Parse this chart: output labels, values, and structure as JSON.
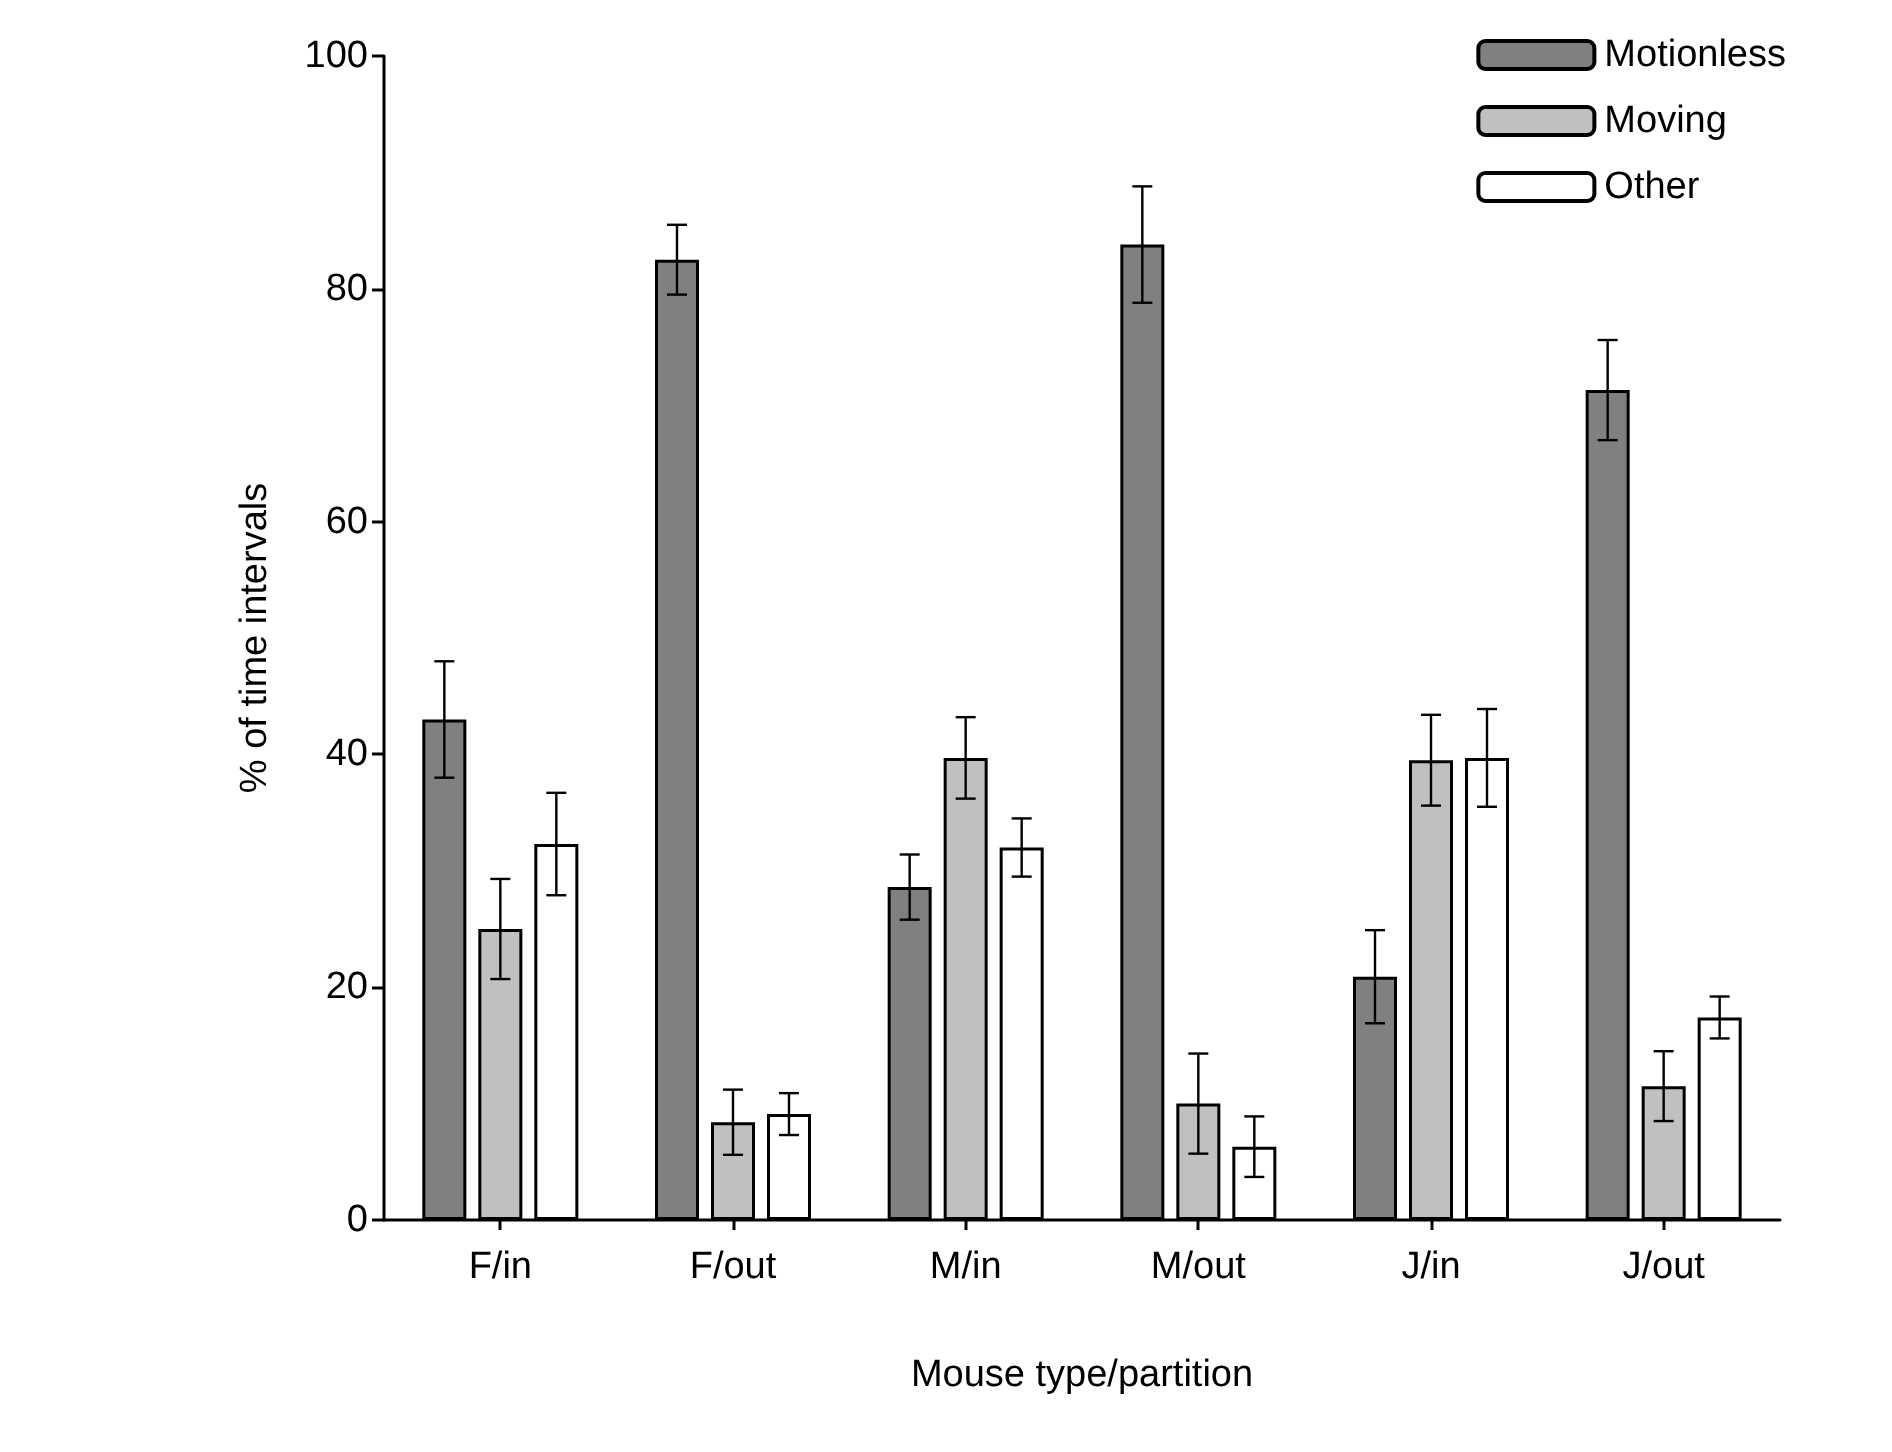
{
  "chart_data": {
    "type": "bar",
    "xlabel": "Mouse type/partition",
    "ylabel": "% of time intervals",
    "categories": [
      "F/in",
      "F/out",
      "M/in",
      "M/out",
      "J/in",
      "J/out"
    ],
    "series": [
      {
        "name": "Motionless",
        "color": "#808080",
        "values": [
          43,
          82.5,
          28.6,
          83.8,
          20.9,
          71.3
        ],
        "errors": [
          5,
          3,
          2.8,
          5,
          4,
          4.3
        ]
      },
      {
        "name": "Moving",
        "color": "#c0c0c0",
        "values": [
          25,
          8.4,
          39.7,
          10,
          39.5,
          11.5
        ],
        "errors": [
          4.3,
          2.8,
          3.5,
          4.3,
          3.9,
          3
        ]
      },
      {
        "name": "Other",
        "color": "#ffffff",
        "values": [
          32.3,
          9.1,
          32,
          6.3,
          39.7,
          17.4
        ],
        "errors": [
          4.4,
          1.8,
          2.5,
          2.6,
          4.2,
          1.8
        ]
      }
    ],
    "ylim": [
      0,
      100
    ],
    "yticks": [
      0,
      20,
      40,
      60,
      80,
      100
    ],
    "grid": false,
    "legend": "top right"
  }
}
